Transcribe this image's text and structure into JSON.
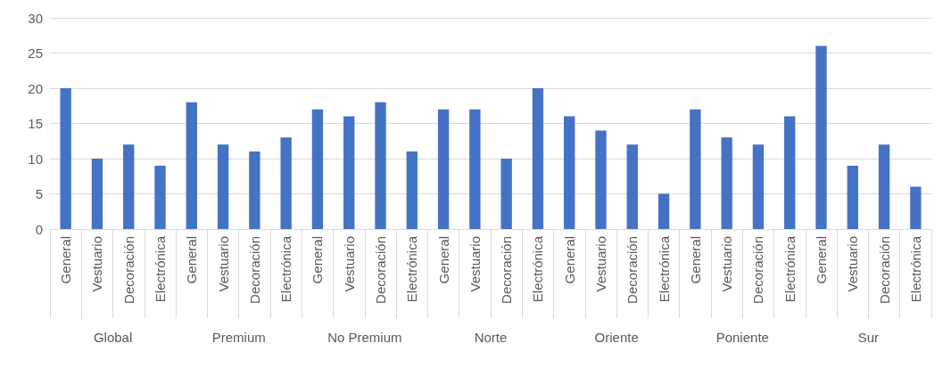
{
  "chart_data": {
    "type": "bar",
    "categories": [
      "General",
      "Vestuario",
      "Decoración",
      "Electrónica",
      "General",
      "Vestuario",
      "Decoración",
      "Electrónica",
      "General",
      "Vestuario",
      "Decoración",
      "Electrónica",
      "General",
      "Vestuario",
      "Decoración",
      "Electrónica",
      "General",
      "Vestuario",
      "Decoración",
      "Electrónica",
      "General",
      "Vestuario",
      "Decoración",
      "Electrónica",
      "General",
      "Vestuario",
      "Decoración",
      "Electrónica"
    ],
    "values": [
      20,
      10,
      12,
      9,
      18,
      12,
      11,
      13,
      17,
      16,
      18,
      11,
      17,
      17,
      10,
      20,
      16,
      14,
      12,
      5,
      17,
      13,
      12,
      16,
      26,
      9,
      12,
      6
    ],
    "color": "#4472c4",
    "ylim": [
      0,
      30
    ],
    "yticks": [
      0,
      5,
      10,
      15,
      20,
      25,
      30
    ],
    "grid": "y",
    "annotations": [
      "Global",
      "Premium",
      "No Premium",
      "Norte",
      "Oriente",
      "Poniente",
      "Sur"
    ]
  }
}
